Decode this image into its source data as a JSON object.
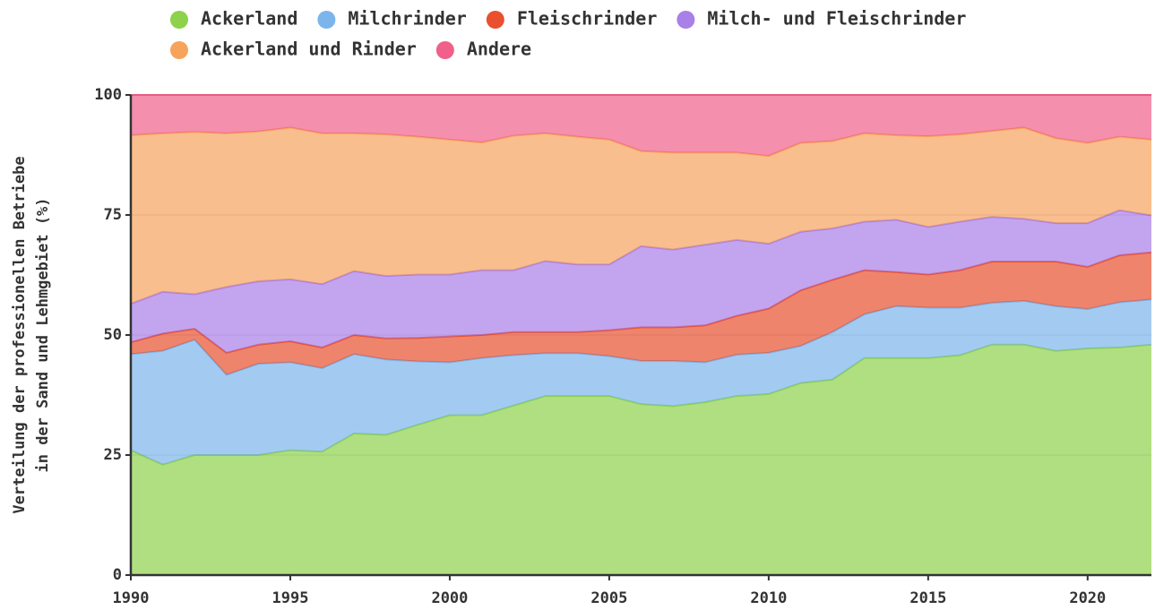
{
  "chart_data": {
    "type": "stacked-area",
    "y_label": [
      "Verteilung der professionellen Betriebe",
      "in der Sand und Lehmgebiet (%)"
    ],
    "x": [
      1990,
      1991,
      1992,
      1993,
      1994,
      1995,
      1996,
      1997,
      1998,
      1999,
      2000,
      2001,
      2002,
      2003,
      2004,
      2005,
      2006,
      2007,
      2008,
      2009,
      2010,
      2011,
      2012,
      2013,
      2014,
      2015,
      2016,
      2017,
      2018,
      2019,
      2020,
      2021,
      2022
    ],
    "xlim": [
      1990,
      2022
    ],
    "xticks": [
      1990,
      1995,
      2000,
      2005,
      2010,
      2015,
      2020
    ],
    "ylim": [
      0,
      100
    ],
    "yticks": [
      0,
      25,
      50,
      75,
      100
    ],
    "grid": true,
    "legend": "top",
    "series": [
      {
        "name": "Ackerland",
        "color": "#8ed14b",
        "values": [
          26,
          23,
          25,
          25,
          25,
          26,
          25.7,
          29.5,
          29.2,
          31.3,
          33.3,
          33.3,
          35.3,
          37.3,
          37.3,
          37.3,
          35.6,
          35.2,
          36,
          37.3,
          37.7,
          40,
          40.7,
          45.2,
          45.2,
          45.2,
          45.8,
          48,
          48,
          46.7,
          47.2,
          47.4,
          48
        ]
      },
      {
        "name": "Milchrinder",
        "color": "#7cb5ec",
        "values": [
          20,
          23.7,
          24,
          16.7,
          19,
          18.3,
          17.4,
          16.5,
          15.7,
          13.2,
          11,
          11.9,
          10.5,
          8.9,
          8.9,
          8.3,
          9,
          9.4,
          8.3,
          8.6,
          8.6,
          7.7,
          9.9,
          9.1,
          10.8,
          10.5,
          9.9,
          8.7,
          9.1,
          9.3,
          8.2,
          9.4,
          9.4
        ]
      },
      {
        "name": "Fleischrinder",
        "color": "#e8502f",
        "values": [
          2.5,
          3.6,
          2.3,
          4.6,
          4,
          4.4,
          4.3,
          4,
          4.4,
          4.9,
          5.4,
          4.8,
          4.8,
          4.4,
          4.4,
          5.4,
          7,
          7,
          7.7,
          8.1,
          9.2,
          11.6,
          10.9,
          9.2,
          7.1,
          6.9,
          7.8,
          8.6,
          8.2,
          9.3,
          8.8,
          9.8,
          9.8
        ]
      },
      {
        "name": "Milch- und Fleischrinder",
        "color": "#a97fe8",
        "values": [
          8,
          8.7,
          7.2,
          13.7,
          13.2,
          12.9,
          13.2,
          13.3,
          13,
          13.2,
          12.9,
          13.5,
          12.9,
          14.8,
          14.1,
          13.7,
          16.9,
          16.2,
          16.8,
          15.8,
          13.5,
          12.2,
          10.7,
          10.1,
          10.9,
          9.9,
          10.1,
          9.3,
          8.9,
          8,
          9.1,
          9.4,
          7.7
        ]
      },
      {
        "name": "Ackerland und Rinder",
        "color": "#f7a35c",
        "values": [
          35.1,
          33,
          33.8,
          32,
          31.2,
          31.6,
          31.4,
          28.7,
          29.5,
          28.7,
          28.1,
          26.6,
          28,
          26.6,
          26.6,
          26,
          19.8,
          20.2,
          19.2,
          18.2,
          18.3,
          18.5,
          18.2,
          18.4,
          17.6,
          18.9,
          18.2,
          17.9,
          19,
          17.7,
          16.7,
          15.3,
          15.8
        ]
      },
      {
        "name": "Andere",
        "color": "#f0608a",
        "values": [
          8.4,
          8,
          7.7,
          8,
          7.6,
          6.8,
          8,
          8,
          8.2,
          8.7,
          9.3,
          9.9,
          8.5,
          8,
          8.7,
          9.3,
          11.7,
          12,
          12,
          12,
          12.7,
          10,
          9.6,
          8,
          8.4,
          8.6,
          8.2,
          7.5,
          6.8,
          9,
          10,
          8.7,
          9.3
        ]
      }
    ]
  }
}
